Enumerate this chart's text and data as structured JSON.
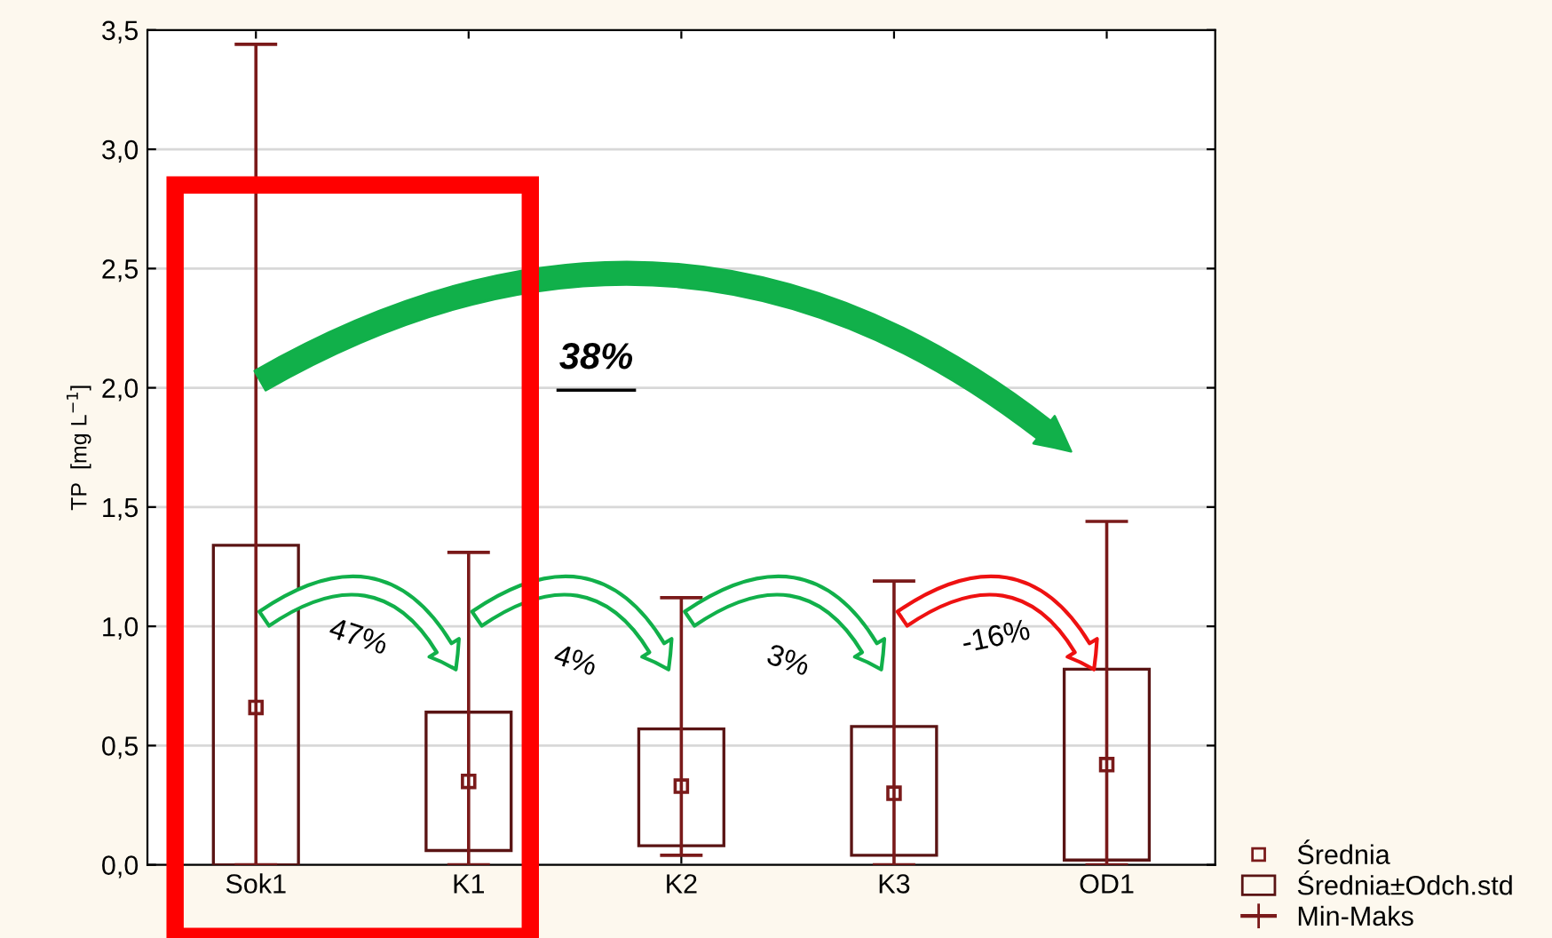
{
  "chart_data": {
    "type": "bar",
    "ylabel": "TP  [mg L$^{−1}$]",
    "categories": [
      "Sok1",
      "K1",
      "K2",
      "K3",
      "OD1"
    ],
    "ylim": [
      0,
      3.5
    ],
    "yticks": [
      {
        "value": 0,
        "label": "0,0"
      },
      {
        "value": 0.5,
        "label": "0,5"
      },
      {
        "value": 1,
        "label": "1,0"
      },
      {
        "value": 1.5,
        "label": "1,5"
      },
      {
        "value": 2,
        "label": "2,0"
      },
      {
        "value": 2.5,
        "label": "2,5"
      },
      {
        "value": 3,
        "label": "3,0"
      },
      {
        "value": 3.5,
        "label": "3,5"
      }
    ],
    "grid": "y",
    "legend": "bottom right",
    "series": [
      {
        "name": "Średnia",
        "type": "scatter",
        "marker": "square",
        "color": "#7a1a1a",
        "values": [
          0.66,
          0.35,
          0.33,
          0.3,
          0.42
        ],
        "errors": [
          [
            0.0,
            3.44
          ],
          [
            0.0,
            1.31
          ],
          [
            0.04,
            1.12
          ],
          [
            0.0,
            1.19
          ],
          [
            0.0,
            1.44
          ]
        ]
      },
      {
        "name": "Średnia±Odch.std",
        "color": "#5a1414",
        "base": [
          0.0,
          0.06,
          0.08,
          0.04,
          0.02
        ],
        "values": [
          1.34,
          0.58,
          0.49,
          0.54,
          0.8
        ]
      }
    ],
    "annotations": [
      "38%",
      "47%",
      "4%",
      "3%",
      "-16%",
      "Min-Maks"
    ]
  }
}
